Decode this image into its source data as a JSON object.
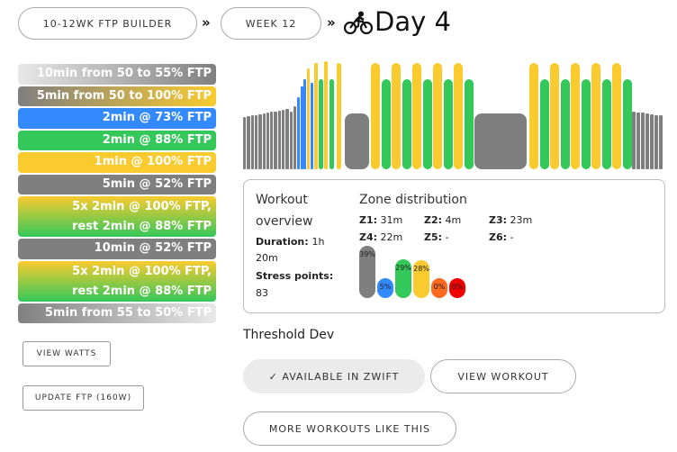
{
  "breadcrumb": {
    "plan": "10-12WK FTP BUILDER",
    "week": "WEEK 12",
    "separator": "»",
    "day": "Day 4"
  },
  "steps": [
    {
      "label": "10min from 50 to 55% FTP",
      "zone": "ramp-gray"
    },
    {
      "label": "5min from 50 to 100% FTP",
      "zone": "ramp-gray-yellow"
    },
    {
      "label": "2min @ 73% FTP",
      "zone": "z2"
    },
    {
      "label": "2min @ 88% FTP",
      "zone": "z3"
    },
    {
      "label": "1min @ 100% FTP",
      "zone": "z4"
    },
    {
      "label": "5min @ 52% FTP",
      "zone": "z1"
    },
    {
      "label": "5x 2min @ 100% FTP,",
      "label2": "rest 2min @ 88% FTP",
      "zone": "interval"
    },
    {
      "label": "10min @ 52% FTP",
      "zone": "z1"
    },
    {
      "label": "5x 2min @ 100% FTP,",
      "label2": "rest 2min @ 88% FTP",
      "zone": "interval"
    },
    {
      "label": "5min from 55 to 50% FTP",
      "zone": "ramp-down"
    }
  ],
  "buttons": {
    "view_watts": "VIEW WATTS",
    "update_ftp": "UPDATE FTP (160W)",
    "available": "✓ AVAILABLE IN ZWIFT",
    "view_workout": "VIEW WORKOUT",
    "more_like": "MORE WORKOUTS LIKE THIS"
  },
  "overview": {
    "title_line1": "Workout",
    "title_line2": "overview",
    "duration_label": "Duration:",
    "duration_value_a": "1h",
    "duration_value_b": "20m",
    "stress_label": "Stress points:",
    "stress_value": "83"
  },
  "zones": {
    "title": "Zone distribution",
    "items": [
      {
        "label": "Z1:",
        "value": "31m"
      },
      {
        "label": "Z2:",
        "value": "4m"
      },
      {
        "label": "Z3:",
        "value": "23m"
      },
      {
        "label": "Z4:",
        "value": "22m"
      },
      {
        "label": "Z5:",
        "value": "-"
      },
      {
        "label": "Z6:",
        "value": "-"
      }
    ],
    "bars": [
      {
        "pct": "39%",
        "fraction": 0.39,
        "color": "#7f7f7f"
      },
      {
        "pct": "5%",
        "fraction": 0.05,
        "color": "#338aff"
      },
      {
        "pct": "29%",
        "fraction": 0.29,
        "color": "#34c759"
      },
      {
        "pct": "28%",
        "fraction": 0.28,
        "color": "#f9cb2f"
      },
      {
        "pct": "0%",
        "fraction": 0.0,
        "color": "#ff6a1f"
      },
      {
        "pct": "0%",
        "fraction": 0.0,
        "color": "#f00000"
      }
    ]
  },
  "workout_name": "Threshold Dev",
  "colors": {
    "z1": "#7f7f7f",
    "z2": "#338aff",
    "z3": "#34c759",
    "z4": "#f9cb2f"
  },
  "icons": [
    "cyclist-icon"
  ]
}
